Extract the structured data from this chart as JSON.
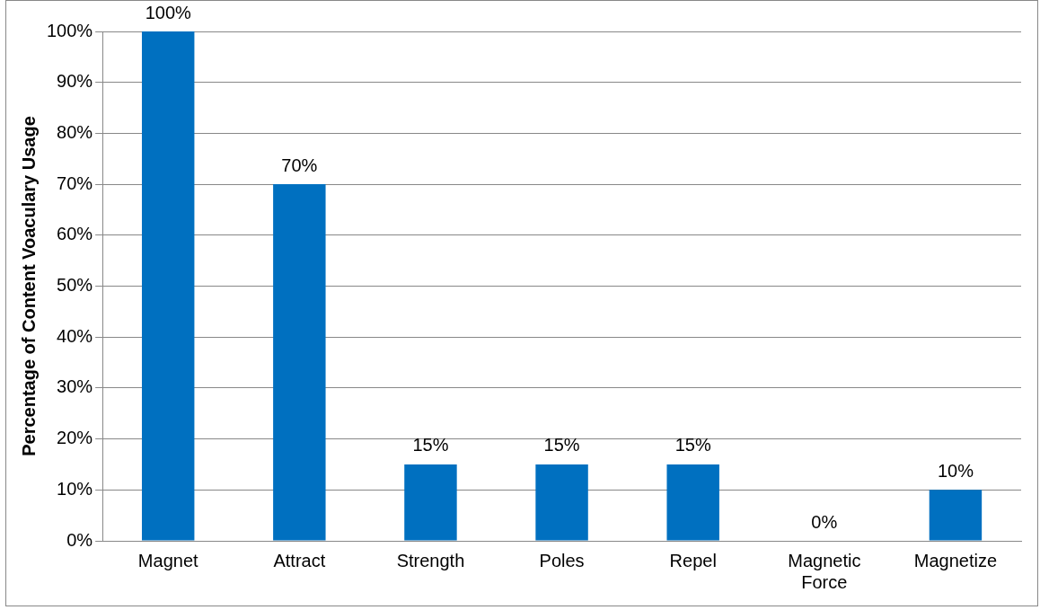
{
  "chart_data": {
    "type": "bar",
    "ylabel": "Percentage of Content Voaculary Usage",
    "categories": [
      "Magnet",
      "Attract",
      "Strength",
      "Poles",
      "Repel",
      "Magnetic Force",
      "Magnetize"
    ],
    "values": [
      100,
      70,
      15,
      15,
      15,
      0,
      10
    ],
    "value_labels": [
      "100%",
      "70%",
      "15%",
      "15%",
      "15%",
      "0%",
      "10%"
    ],
    "color": "#0070c0",
    "ylim": [
      0,
      100
    ],
    "yticks": [
      {
        "value": 0,
        "label": "0%"
      },
      {
        "value": 10,
        "label": "10%"
      },
      {
        "value": 20,
        "label": "20%"
      },
      {
        "value": 30,
        "label": "30%"
      },
      {
        "value": 40,
        "label": "40%"
      },
      {
        "value": 50,
        "label": "50%"
      },
      {
        "value": 60,
        "label": "60%"
      },
      {
        "value": 70,
        "label": "70%"
      },
      {
        "value": 80,
        "label": "80%"
      },
      {
        "value": 90,
        "label": "90%"
      },
      {
        "value": 100,
        "label": "100%"
      }
    ],
    "grid": "y",
    "legend": false
  }
}
